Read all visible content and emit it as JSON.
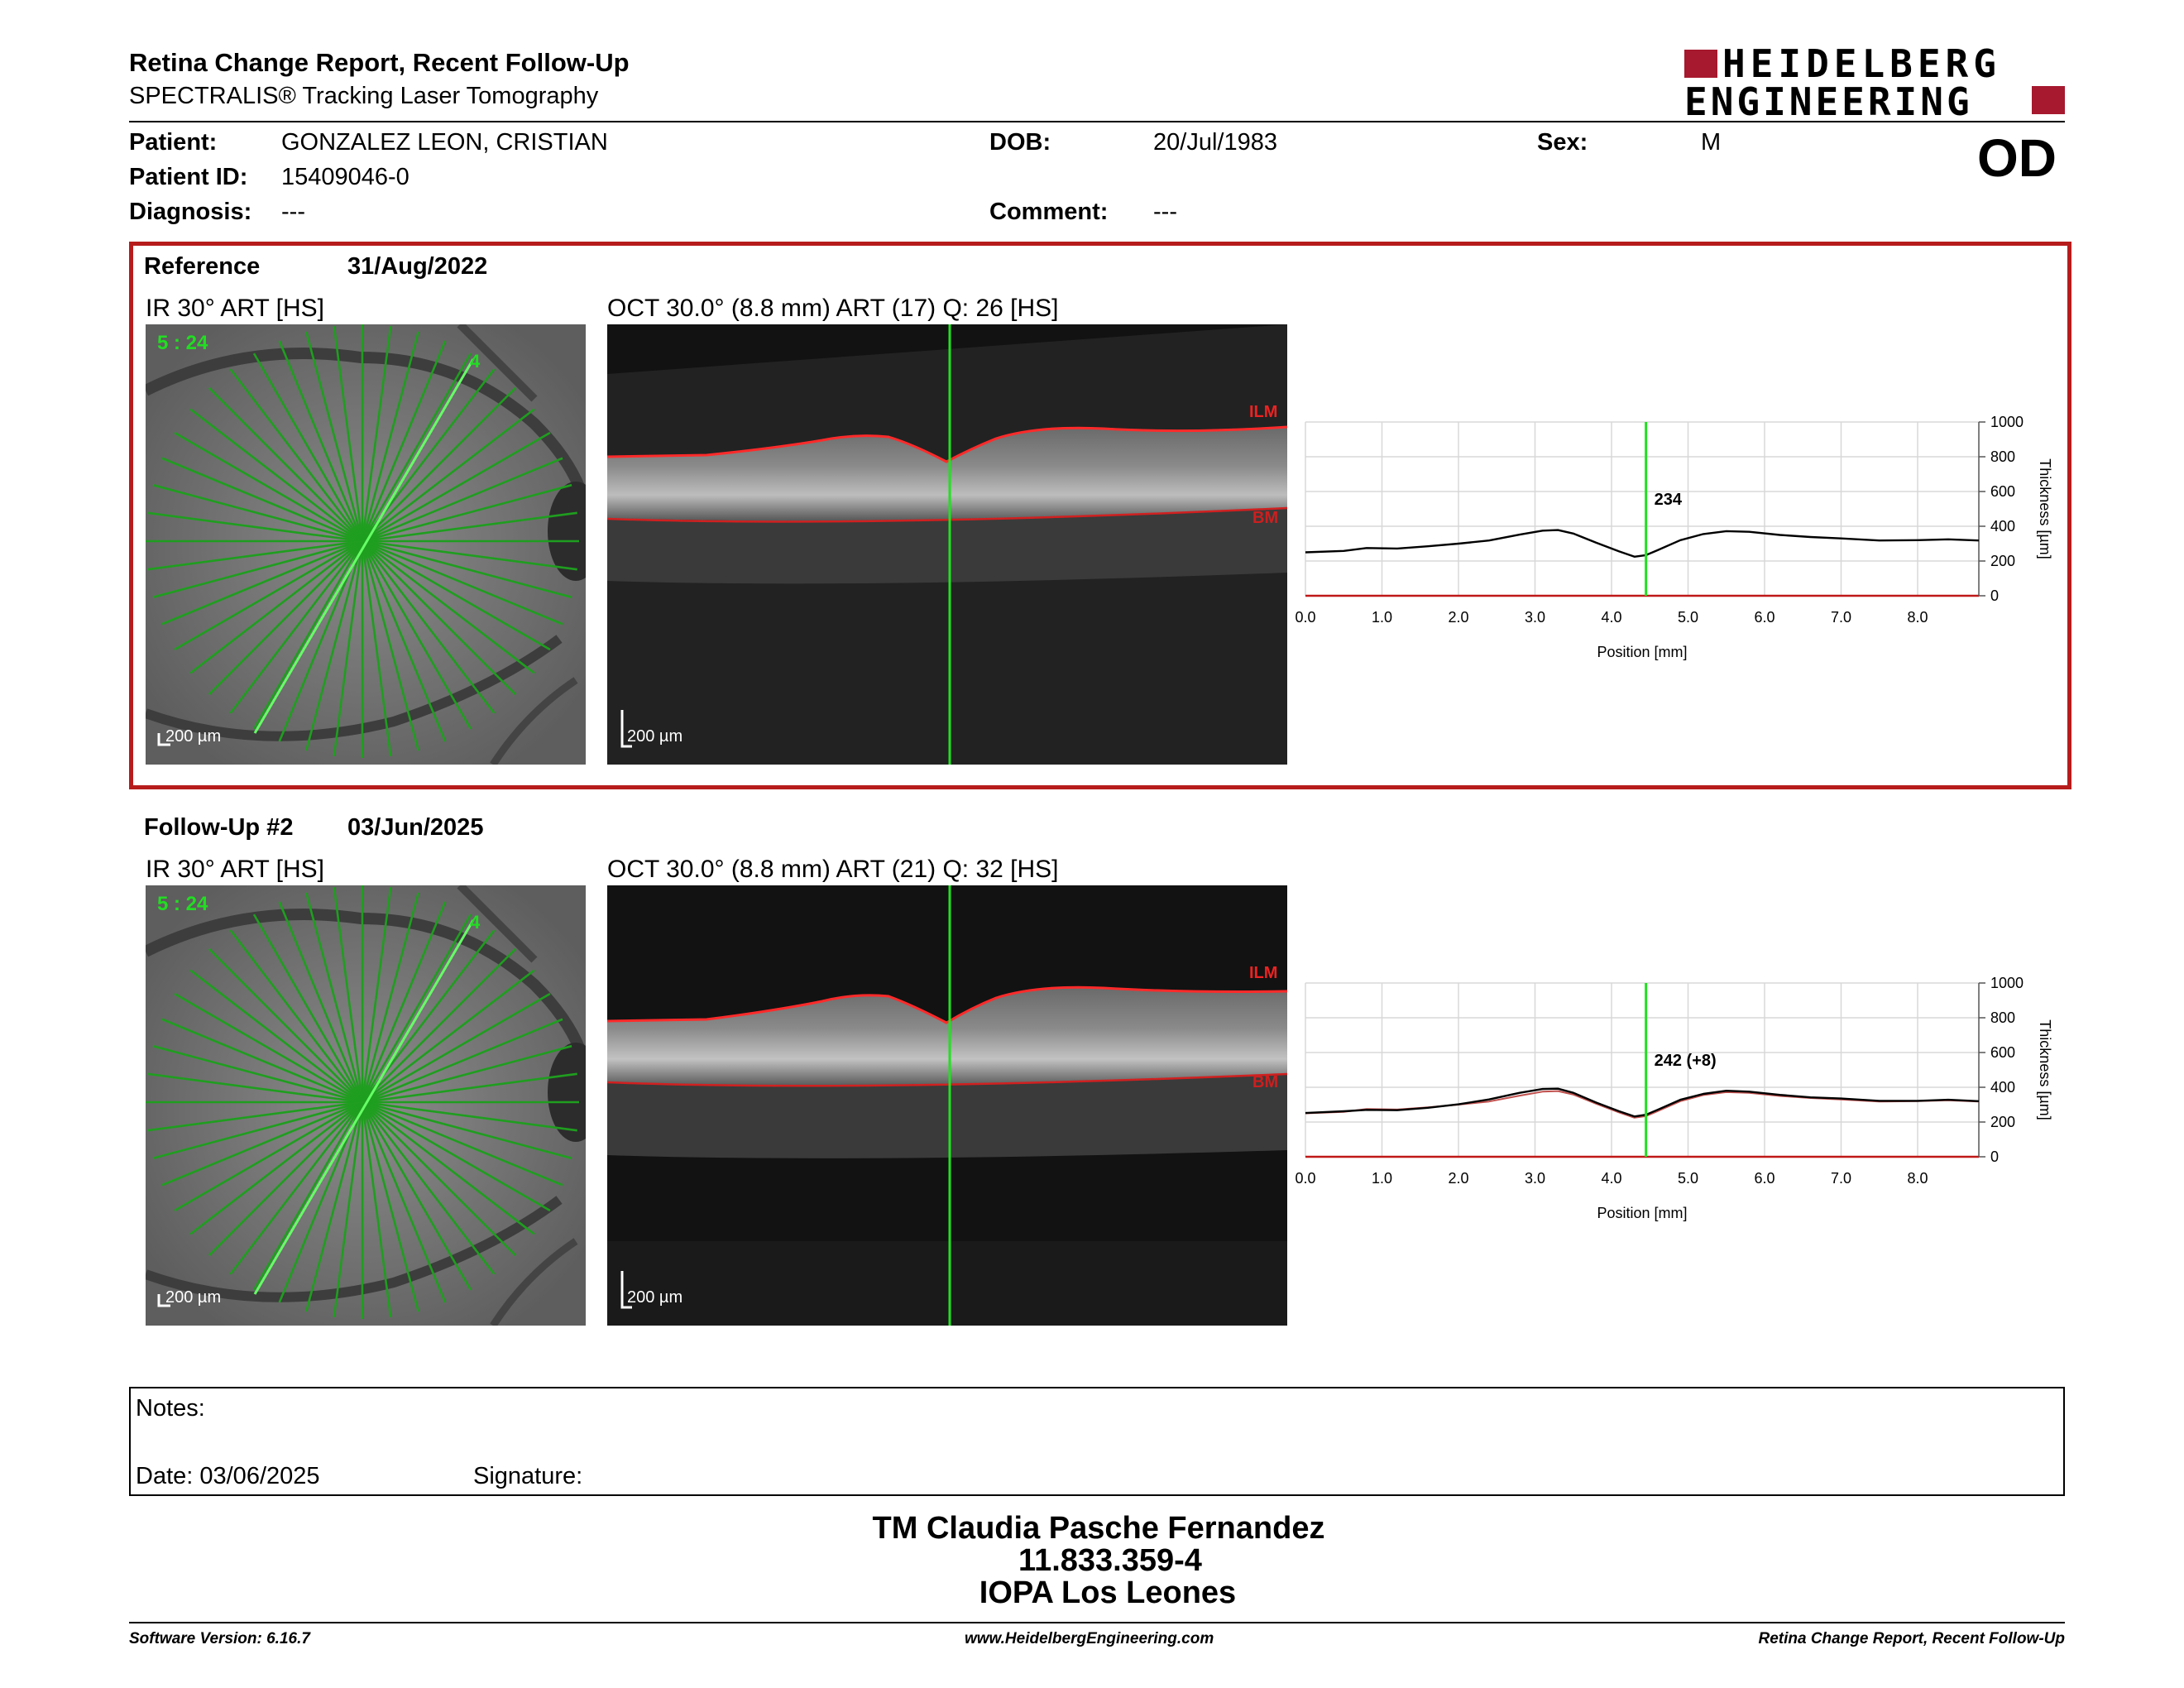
{
  "header": {
    "title": "Retina Change Report, Recent Follow-Up",
    "subtitle": "SPECTRALIS® Tracking Laser Tomography",
    "logo_line1": "HEIDELBERG",
    "logo_line2": "ENGINEERING",
    "eye": "OD"
  },
  "patient": {
    "patient_label": "Patient:",
    "patient_value": "GONZALEZ LEON, CRISTIAN",
    "id_label": "Patient ID:",
    "id_value": "15409046-0",
    "diagnosis_label": "Diagnosis:",
    "diagnosis_value": "---",
    "dob_label": "DOB:",
    "dob_value": "20/Jul/1983",
    "comment_label": "Comment:",
    "comment_value": "---",
    "sex_label": "Sex:",
    "sex_value": "M"
  },
  "reference": {
    "label": "Reference",
    "date": "31/Aug/2022",
    "ir_label": "IR 30° ART [HS]",
    "oct_label": "OCT 30.0° (8.8 mm) ART (17) Q: 26 [HS]",
    "scan_index": "5 : 24",
    "scan_marker": "4",
    "ir_scale": "200 µm",
    "oct_scale": "200 µm",
    "ilm": "ILM",
    "bm": "BM",
    "cursor_value": "234"
  },
  "followup": {
    "label": "Follow-Up #2",
    "date": "03/Jun/2025",
    "ir_label": "IR 30° ART [HS]",
    "oct_label": "OCT 30.0° (8.8 mm) ART (21) Q: 32 [HS]",
    "scan_index": "5 : 24",
    "scan_marker": "4",
    "ir_scale": "200 µm",
    "oct_scale": "200 µm",
    "ilm": "ILM",
    "bm": "BM",
    "cursor_value": "242 (+8)"
  },
  "chart_data": [
    {
      "type": "line",
      "xlabel": "Position [mm]",
      "ylabel": "Thickness [µm]",
      "xlim": [
        0,
        8.8
      ],
      "ylim": [
        0,
        1000
      ],
      "xticks": [
        "0.0",
        "1.0",
        "2.0",
        "3.0",
        "4.0",
        "5.0",
        "6.0",
        "7.0",
        "8.0"
      ],
      "yticks": [
        "0",
        "200",
        "400",
        "600",
        "800",
        "1000"
      ],
      "grid": true,
      "cursor_x": 4.45,
      "series": [
        {
          "color": "#000000",
          "x": [
            0,
            0.5,
            0.8,
            1.2,
            1.6,
            2.0,
            2.4,
            2.8,
            3.1,
            3.3,
            3.5,
            3.8,
            4.1,
            4.3,
            4.45,
            4.6,
            4.9,
            5.2,
            5.5,
            5.8,
            6.2,
            6.6,
            7.0,
            7.5,
            8.0,
            8.4,
            8.8
          ],
          "y": [
            250,
            258,
            275,
            272,
            285,
            300,
            318,
            352,
            375,
            378,
            358,
            305,
            255,
            225,
            234,
            262,
            320,
            355,
            372,
            368,
            350,
            338,
            330,
            318,
            320,
            325,
            318
          ]
        }
      ]
    },
    {
      "type": "line",
      "xlabel": "Position [mm]",
      "ylabel": "Thickness [µm]",
      "xlim": [
        0,
        8.8
      ],
      "ylim": [
        0,
        1000
      ],
      "xticks": [
        "0.0",
        "1.0",
        "2.0",
        "3.0",
        "4.0",
        "5.0",
        "6.0",
        "7.0",
        "8.0"
      ],
      "yticks": [
        "0",
        "200",
        "400",
        "600",
        "800",
        "1000"
      ],
      "grid": true,
      "cursor_x": 4.45,
      "series": [
        {
          "color": "#c0504d",
          "x": [
            0,
            0.5,
            0.8,
            1.2,
            1.6,
            2.0,
            2.4,
            2.8,
            3.1,
            3.3,
            3.5,
            3.8,
            4.1,
            4.3,
            4.45,
            4.6,
            4.9,
            5.2,
            5.5,
            5.8,
            6.2,
            6.6,
            7.0,
            7.5,
            8.0,
            8.4,
            8.8
          ],
          "y": [
            250,
            258,
            275,
            272,
            285,
            300,
            318,
            352,
            375,
            378,
            358,
            305,
            255,
            225,
            234,
            262,
            320,
            355,
            372,
            368,
            350,
            338,
            330,
            318,
            320,
            325,
            318
          ]
        },
        {
          "color": "#000000",
          "x": [
            0,
            0.5,
            0.8,
            1.2,
            1.6,
            2.0,
            2.4,
            2.8,
            3.1,
            3.3,
            3.5,
            3.8,
            4.1,
            4.3,
            4.45,
            4.6,
            4.9,
            5.2,
            5.5,
            5.8,
            6.2,
            6.6,
            7.0,
            7.5,
            8.0,
            8.4,
            8.8
          ],
          "y": [
            252,
            262,
            270,
            268,
            282,
            302,
            330,
            368,
            390,
            392,
            368,
            312,
            262,
            232,
            242,
            270,
            328,
            362,
            380,
            375,
            356,
            342,
            335,
            322,
            322,
            328,
            320
          ]
        }
      ]
    }
  ],
  "notes": {
    "notes_label": "Notes:",
    "date_label": "Date: 03/06/2025",
    "signature_label": "Signature:"
  },
  "signer": {
    "name": "TM Claudia Pasche Fernandez",
    "id": "11.833.359-4",
    "org": "IOPA Los Leones"
  },
  "footer": {
    "software": "Software Version: 6.16.7",
    "website": "www.HeidelbergEngineering.com",
    "report": "Retina Change Report, Recent Follow-Up"
  },
  "colors": {
    "brand_red": "#a6192e",
    "scan_green": "#22c422",
    "ilm_red": "#e03030"
  }
}
